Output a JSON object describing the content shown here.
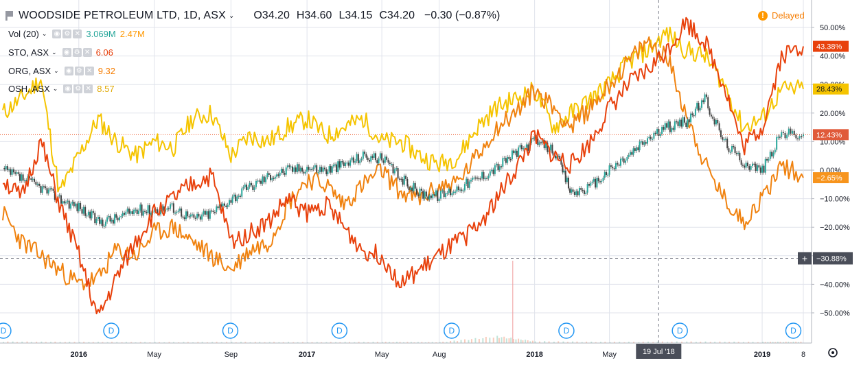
{
  "header": {
    "symbol": "WOODSIDE PETROLEUM LTD, 1D, ASX",
    "open": "O34.20",
    "high": "H34.60",
    "low": "L34.15",
    "close": "C34.20",
    "change": "−0.30 (−0.87%)",
    "delayed": "Delayed"
  },
  "indicators": [
    {
      "label": "Vol (20)",
      "value": "3.069M",
      "value2": "2.47M",
      "color": "#26a69a",
      "color2": "#ff9800"
    },
    {
      "label": "STO, ASX",
      "value": "6.06",
      "color": "#e8410c"
    },
    {
      "label": "ORG, ASX",
      "value": "9.32",
      "color": "#f57c00"
    },
    {
      "label": "OSH, ASX",
      "value": "8.57",
      "color": "#f5b800"
    }
  ],
  "colors": {
    "woodside": "#3c3c3c",
    "sto": "#e8410c",
    "org": "#f0820f",
    "osh": "#f5c400",
    "axis_text": "#131722",
    "grid": "#e0e3eb"
  },
  "chart_data": {
    "type": "line",
    "y_axis": {
      "unit": "%",
      "range": [
        -55,
        55
      ],
      "ticks": [
        "50.00%",
        "40.00%",
        "30.00%",
        "20.00%",
        "10.00%",
        "0.00%",
        "−10.00%",
        "−20.00%",
        "−30.00%",
        "−40.00%",
        "−50.00%"
      ],
      "tick_values": [
        50,
        40,
        30,
        20,
        10,
        0,
        -10,
        -20,
        -30,
        -40,
        -50
      ]
    },
    "x_axis": {
      "range": [
        "2015-09-01",
        "2019-03-08"
      ],
      "ticks": [
        {
          "label": "2016",
          "date": "2016-01-01"
        },
        {
          "label": "May",
          "date": "2016-05-01"
        },
        {
          "label": "Sep",
          "date": "2016-09-01"
        },
        {
          "label": "2017",
          "date": "2017-01-01"
        },
        {
          "label": "May",
          "date": "2017-05-01"
        },
        {
          "label": "Aug",
          "date": "2017-08-01"
        },
        {
          "label": "2018",
          "date": "2018-01-01"
        },
        {
          "label": "May",
          "date": "2018-05-01"
        },
        {
          "label": "2019",
          "date": "2019-01-01"
        },
        {
          "label": "8",
          "date": "2019-03-08"
        }
      ]
    },
    "crosshair": {
      "date_label": "19 Jul '18",
      "date": "2018-07-19",
      "value_label": "−30.88%",
      "value": -30.88
    },
    "last_value_labels": [
      {
        "series": "STO, ASX",
        "text": "43.38%",
        "value": 43.38
      },
      {
        "series": "OSH, ASX",
        "text": "28.43%",
        "value": 28.43
      },
      {
        "series": "WOODSIDE PETROLEUM LTD",
        "text": "12.43%",
        "value": 12.43
      },
      {
        "series": "ORG, ASX",
        "text": "−2.65%",
        "value": -2.65
      }
    ],
    "dividend_markers": {
      "label": "D",
      "dates": [
        "2015-09-02",
        "2016-02-22",
        "2016-08-31",
        "2017-02-22",
        "2017-08-21",
        "2018-02-21",
        "2018-08-22",
        "2019-02-20"
      ]
    },
    "series": [
      {
        "name": "WOODSIDE PETROLEUM LTD",
        "style": "candles",
        "points": [
          [
            "2015-09-01",
            0
          ],
          [
            "2015-10-01",
            -3
          ],
          [
            "2015-11-01",
            -6
          ],
          [
            "2015-12-01",
            -10
          ],
          [
            "2016-01-01",
            -13
          ],
          [
            "2016-02-01",
            -18
          ],
          [
            "2016-03-01",
            -17
          ],
          [
            "2016-04-01",
            -14
          ],
          [
            "2016-05-01",
            -14
          ],
          [
            "2016-06-01",
            -13
          ],
          [
            "2016-07-01",
            -17
          ],
          [
            "2016-08-01",
            -15
          ],
          [
            "2016-09-01",
            -10
          ],
          [
            "2016-10-01",
            -6
          ],
          [
            "2016-11-01",
            -2
          ],
          [
            "2016-12-01",
            0
          ],
          [
            "2017-01-01",
            1
          ],
          [
            "2017-02-01",
            0
          ],
          [
            "2017-03-01",
            2
          ],
          [
            "2017-04-01",
            5
          ],
          [
            "2017-05-01",
            4
          ],
          [
            "2017-06-01",
            -3
          ],
          [
            "2017-07-01",
            -8
          ],
          [
            "2017-08-01",
            -9
          ],
          [
            "2017-09-01",
            -6
          ],
          [
            "2017-10-01",
            -3
          ],
          [
            "2017-11-01",
            1
          ],
          [
            "2017-12-01",
            6
          ],
          [
            "2018-01-01",
            10
          ],
          [
            "2018-02-01",
            7
          ],
          [
            "2018-03-01",
            -8
          ],
          [
            "2018-04-01",
            -6
          ],
          [
            "2018-05-01",
            0
          ],
          [
            "2018-06-01",
            5
          ],
          [
            "2018-07-01",
            11
          ],
          [
            "2018-08-01",
            15
          ],
          [
            "2018-09-01",
            17
          ],
          [
            "2018-10-01",
            25
          ],
          [
            "2018-11-01",
            10
          ],
          [
            "2018-12-01",
            3
          ],
          [
            "2019-01-01",
            0
          ],
          [
            "2019-02-01",
            13
          ],
          [
            "2019-03-08",
            12.43
          ]
        ]
      },
      {
        "name": "STO, ASX",
        "style": "line",
        "points": [
          [
            "2015-09-01",
            -3
          ],
          [
            "2015-10-01",
            -10
          ],
          [
            "2015-11-01",
            10
          ],
          [
            "2015-12-01",
            -12
          ],
          [
            "2016-01-01",
            -30
          ],
          [
            "2016-02-01",
            -52
          ],
          [
            "2016-03-01",
            -38
          ],
          [
            "2016-04-01",
            -25
          ],
          [
            "2016-05-01",
            -15
          ],
          [
            "2016-06-01",
            -10
          ],
          [
            "2016-07-01",
            -5
          ],
          [
            "2016-08-01",
            -2
          ],
          [
            "2016-09-01",
            -25
          ],
          [
            "2016-10-01",
            -22
          ],
          [
            "2016-11-01",
            -18
          ],
          [
            "2016-12-01",
            -10
          ],
          [
            "2017-01-01",
            -15
          ],
          [
            "2017-02-01",
            -12
          ],
          [
            "2017-03-01",
            -20
          ],
          [
            "2017-04-01",
            -28
          ],
          [
            "2017-05-01",
            -30
          ],
          [
            "2017-06-01",
            -40
          ],
          [
            "2017-07-01",
            -35
          ],
          [
            "2017-08-01",
            -30
          ],
          [
            "2017-09-01",
            -25
          ],
          [
            "2017-10-01",
            -20
          ],
          [
            "2017-11-01",
            -10
          ],
          [
            "2017-12-01",
            0
          ],
          [
            "2018-01-01",
            12
          ],
          [
            "2018-02-01",
            5
          ],
          [
            "2018-03-01",
            2
          ],
          [
            "2018-04-01",
            10
          ],
          [
            "2018-05-01",
            22
          ],
          [
            "2018-06-01",
            30
          ],
          [
            "2018-07-01",
            35
          ],
          [
            "2018-08-01",
            42
          ],
          [
            "2018-09-01",
            52
          ],
          [
            "2018-10-01",
            45
          ],
          [
            "2018-11-01",
            30
          ],
          [
            "2018-12-01",
            8
          ],
          [
            "2019-01-01",
            15
          ],
          [
            "2019-02-01",
            40
          ],
          [
            "2019-03-08",
            43.38
          ]
        ]
      },
      {
        "name": "ORG, ASX",
        "style": "line",
        "points": [
          [
            "2015-09-01",
            -15
          ],
          [
            "2015-10-01",
            -25
          ],
          [
            "2015-11-01",
            -30
          ],
          [
            "2015-12-01",
            -35
          ],
          [
            "2016-01-01",
            -40
          ],
          [
            "2016-02-01",
            -38
          ],
          [
            "2016-03-01",
            -28
          ],
          [
            "2016-04-01",
            -30
          ],
          [
            "2016-05-01",
            -22
          ],
          [
            "2016-06-01",
            -20
          ],
          [
            "2016-07-01",
            -25
          ],
          [
            "2016-08-01",
            -30
          ],
          [
            "2016-09-01",
            -35
          ],
          [
            "2016-10-01",
            -28
          ],
          [
            "2016-11-01",
            -25
          ],
          [
            "2016-12-01",
            -12
          ],
          [
            "2017-01-01",
            -3
          ],
          [
            "2017-02-01",
            -5
          ],
          [
            "2017-03-01",
            -12
          ],
          [
            "2017-04-01",
            -5
          ],
          [
            "2017-05-01",
            0
          ],
          [
            "2017-06-01",
            -8
          ],
          [
            "2017-07-01",
            -10
          ],
          [
            "2017-08-01",
            -6
          ],
          [
            "2017-09-01",
            -4
          ],
          [
            "2017-10-01",
            5
          ],
          [
            "2017-11-01",
            15
          ],
          [
            "2017-12-01",
            20
          ],
          [
            "2018-01-01",
            28
          ],
          [
            "2018-02-01",
            22
          ],
          [
            "2018-03-01",
            15
          ],
          [
            "2018-04-01",
            22
          ],
          [
            "2018-05-01",
            30
          ],
          [
            "2018-06-01",
            38
          ],
          [
            "2018-07-01",
            45
          ],
          [
            "2018-08-01",
            40
          ],
          [
            "2018-09-01",
            20
          ],
          [
            "2018-10-01",
            2
          ],
          [
            "2018-11-01",
            -10
          ],
          [
            "2018-12-01",
            -18
          ],
          [
            "2019-01-01",
            -10
          ],
          [
            "2019-02-01",
            2
          ],
          [
            "2019-03-08",
            -2.65
          ]
        ]
      },
      {
        "name": "OSH, ASX",
        "style": "line",
        "points": [
          [
            "2015-09-01",
            20
          ],
          [
            "2015-10-01",
            25
          ],
          [
            "2015-11-01",
            32
          ],
          [
            "2015-12-01",
            -8
          ],
          [
            "2016-01-01",
            5
          ],
          [
            "2016-02-01",
            18
          ],
          [
            "2016-03-01",
            10
          ],
          [
            "2016-04-01",
            5
          ],
          [
            "2016-05-01",
            10
          ],
          [
            "2016-06-01",
            8
          ],
          [
            "2016-07-01",
            18
          ],
          [
            "2016-08-01",
            20
          ],
          [
            "2016-09-01",
            5
          ],
          [
            "2016-10-01",
            12
          ],
          [
            "2016-11-01",
            10
          ],
          [
            "2016-12-01",
            15
          ],
          [
            "2017-01-01",
            18
          ],
          [
            "2017-02-01",
            12
          ],
          [
            "2017-03-01",
            15
          ],
          [
            "2017-04-01",
            18
          ],
          [
            "2017-05-01",
            10
          ],
          [
            "2017-06-01",
            10
          ],
          [
            "2017-07-01",
            5
          ],
          [
            "2017-08-01",
            2
          ],
          [
            "2017-09-01",
            5
          ],
          [
            "2017-10-01",
            15
          ],
          [
            "2017-11-01",
            22
          ],
          [
            "2017-12-01",
            25
          ],
          [
            "2018-01-01",
            28
          ],
          [
            "2018-02-01",
            15
          ],
          [
            "2018-03-01",
            20
          ],
          [
            "2018-04-01",
            25
          ],
          [
            "2018-05-01",
            30
          ],
          [
            "2018-06-01",
            38
          ],
          [
            "2018-07-01",
            42
          ],
          [
            "2018-08-01",
            48
          ],
          [
            "2018-09-01",
            42
          ],
          [
            "2018-10-01",
            40
          ],
          [
            "2018-11-01",
            30
          ],
          [
            "2018-12-01",
            15
          ],
          [
            "2019-01-01",
            18
          ],
          [
            "2019-02-01",
            28
          ],
          [
            "2019-03-08",
            28.43
          ]
        ]
      }
    ],
    "volume": {
      "range": [
        0,
        1
      ],
      "points": [
        [
          "2015-09-01",
          0.2
        ],
        [
          "2016-01-01",
          0.15
        ],
        [
          "2016-05-01",
          0.12
        ],
        [
          "2016-09-01",
          0.15
        ],
        [
          "2017-01-01",
          0.12
        ],
        [
          "2017-05-01",
          0.15
        ],
        [
          "2017-08-01",
          0.12
        ],
        [
          "2017-11-01",
          0.9
        ],
        [
          "2018-01-01",
          0.25
        ],
        [
          "2018-05-01",
          0.15
        ],
        [
          "2018-09-01",
          0.2
        ],
        [
          "2019-01-01",
          0.15
        ],
        [
          "2019-03-08",
          0.18
        ]
      ]
    }
  }
}
